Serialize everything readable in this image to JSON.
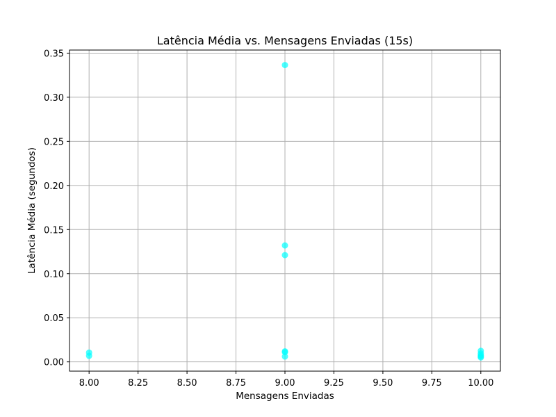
{
  "chart_data": {
    "type": "scatter",
    "title": "Latência Média vs. Mensagens Enviadas (15s)",
    "xlabel": "Mensagens Enviadas",
    "ylabel": "Latência Média (segundos)",
    "xlim": [
      7.9,
      10.1
    ],
    "ylim": [
      -0.0105,
      0.3535
    ],
    "xticks": [
      "8.00",
      "8.25",
      "8.50",
      "8.75",
      "9.00",
      "9.25",
      "9.50",
      "9.75",
      "10.00"
    ],
    "xtick_values": [
      8.0,
      8.25,
      8.5,
      8.75,
      9.0,
      9.25,
      9.5,
      9.75,
      10.0
    ],
    "yticks": [
      "0.00",
      "0.05",
      "0.10",
      "0.15",
      "0.20",
      "0.25",
      "0.30",
      "0.35"
    ],
    "ytick_values": [
      0.0,
      0.05,
      0.1,
      0.15,
      0.2,
      0.25,
      0.3,
      0.35
    ],
    "grid": true,
    "marker_color": "#00FFFF",
    "marker_alpha": 0.7,
    "series": [
      {
        "x": [
          8,
          8,
          9,
          9,
          9,
          9,
          9,
          9,
          10,
          10,
          10,
          10,
          10
        ],
        "y": [
          0.0105,
          0.0068,
          0.3365,
          0.132,
          0.121,
          0.012,
          0.011,
          0.006,
          0.0125,
          0.0095,
          0.0075,
          0.006,
          0.005
        ]
      }
    ]
  }
}
